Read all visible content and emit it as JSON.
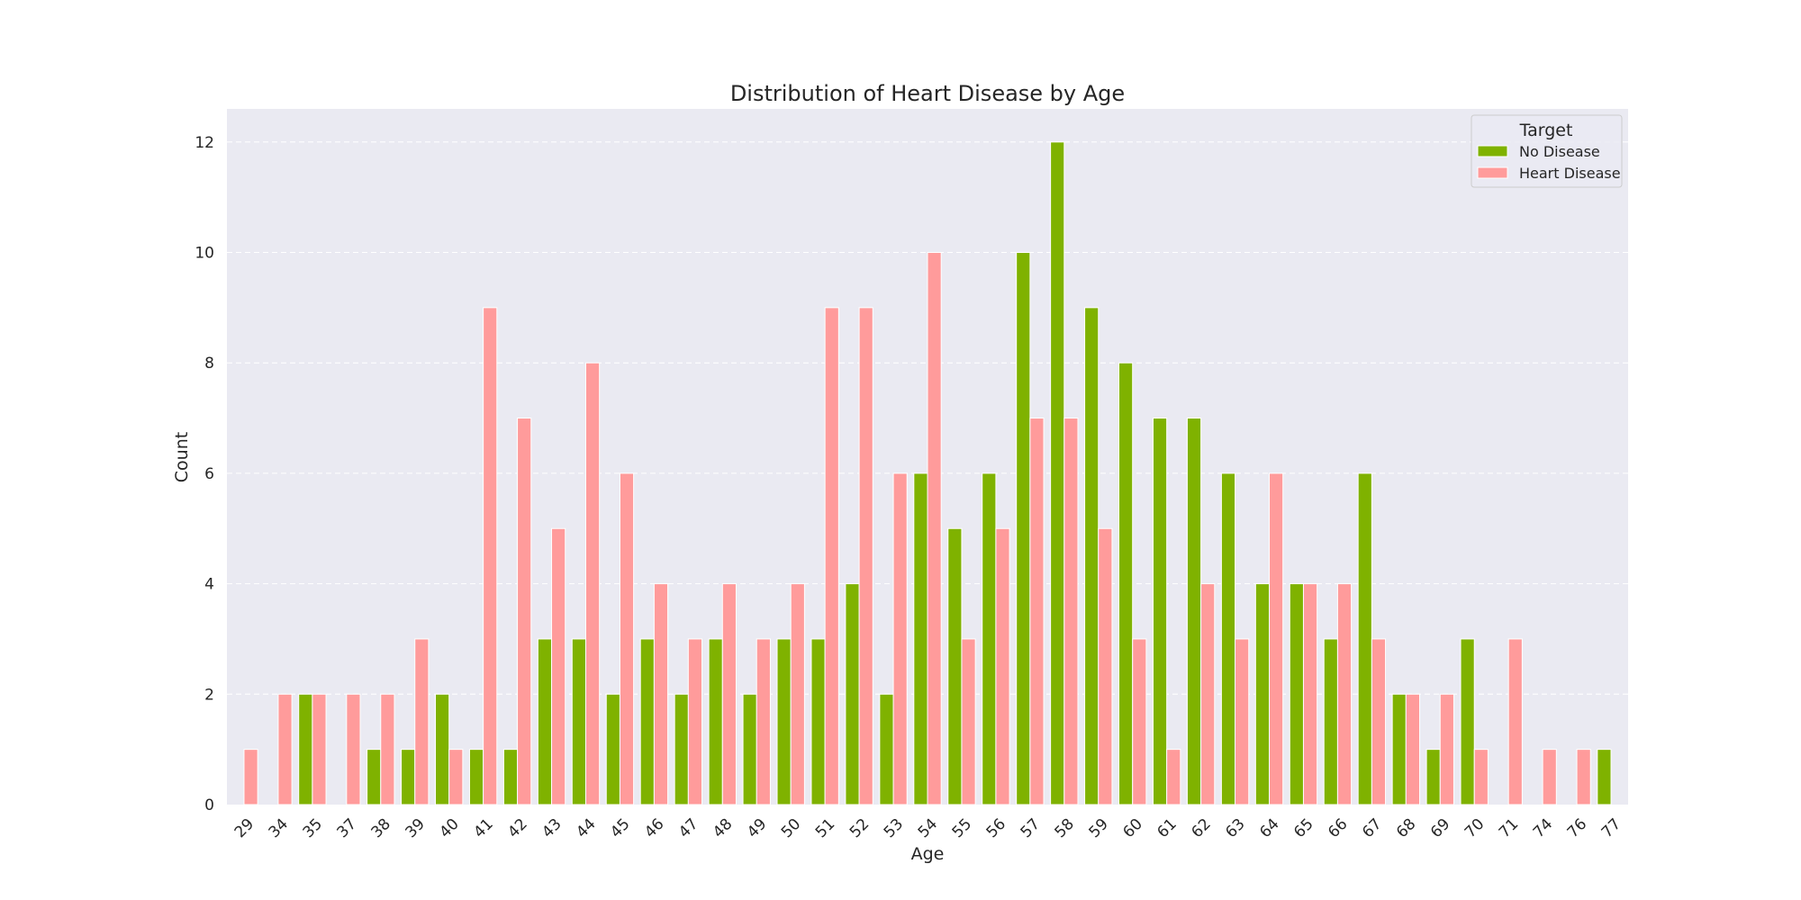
{
  "chart_data": {
    "type": "bar",
    "title": "Distribution of Heart Disease by Age",
    "xlabel": "Age",
    "ylabel": "Count",
    "ylim": [
      0,
      12.6
    ],
    "yticks": [
      "0",
      "2",
      "4",
      "6",
      "8",
      "10",
      "12"
    ],
    "grid": true,
    "legend_title": "Target",
    "legend_position": "top-right",
    "categories": [
      "29",
      "34",
      "35",
      "37",
      "38",
      "39",
      "40",
      "41",
      "42",
      "43",
      "44",
      "45",
      "46",
      "47",
      "48",
      "49",
      "50",
      "51",
      "52",
      "53",
      "54",
      "55",
      "56",
      "57",
      "58",
      "59",
      "60",
      "61",
      "62",
      "63",
      "64",
      "65",
      "66",
      "67",
      "68",
      "69",
      "70",
      "71",
      "74",
      "76",
      "77"
    ],
    "series": [
      {
        "name": "No Disease",
        "color": "#7fb200",
        "values": [
          0,
          0,
          2,
          0,
          1,
          1,
          2,
          1,
          1,
          3,
          3,
          2,
          3,
          2,
          3,
          2,
          3,
          3,
          4,
          2,
          6,
          5,
          6,
          10,
          12,
          9,
          8,
          7,
          7,
          6,
          4,
          4,
          3,
          6,
          2,
          1,
          3,
          0,
          0,
          0,
          1
        ]
      },
      {
        "name": "Heart Disease",
        "color": "#ff9b9b",
        "values": [
          1,
          2,
          2,
          2,
          2,
          3,
          1,
          9,
          7,
          5,
          8,
          6,
          4,
          3,
          4,
          3,
          4,
          9,
          9,
          6,
          10,
          3,
          5,
          7,
          7,
          5,
          3,
          1,
          4,
          3,
          6,
          4,
          4,
          3,
          2,
          2,
          1,
          3,
          1,
          1,
          0
        ]
      }
    ]
  }
}
